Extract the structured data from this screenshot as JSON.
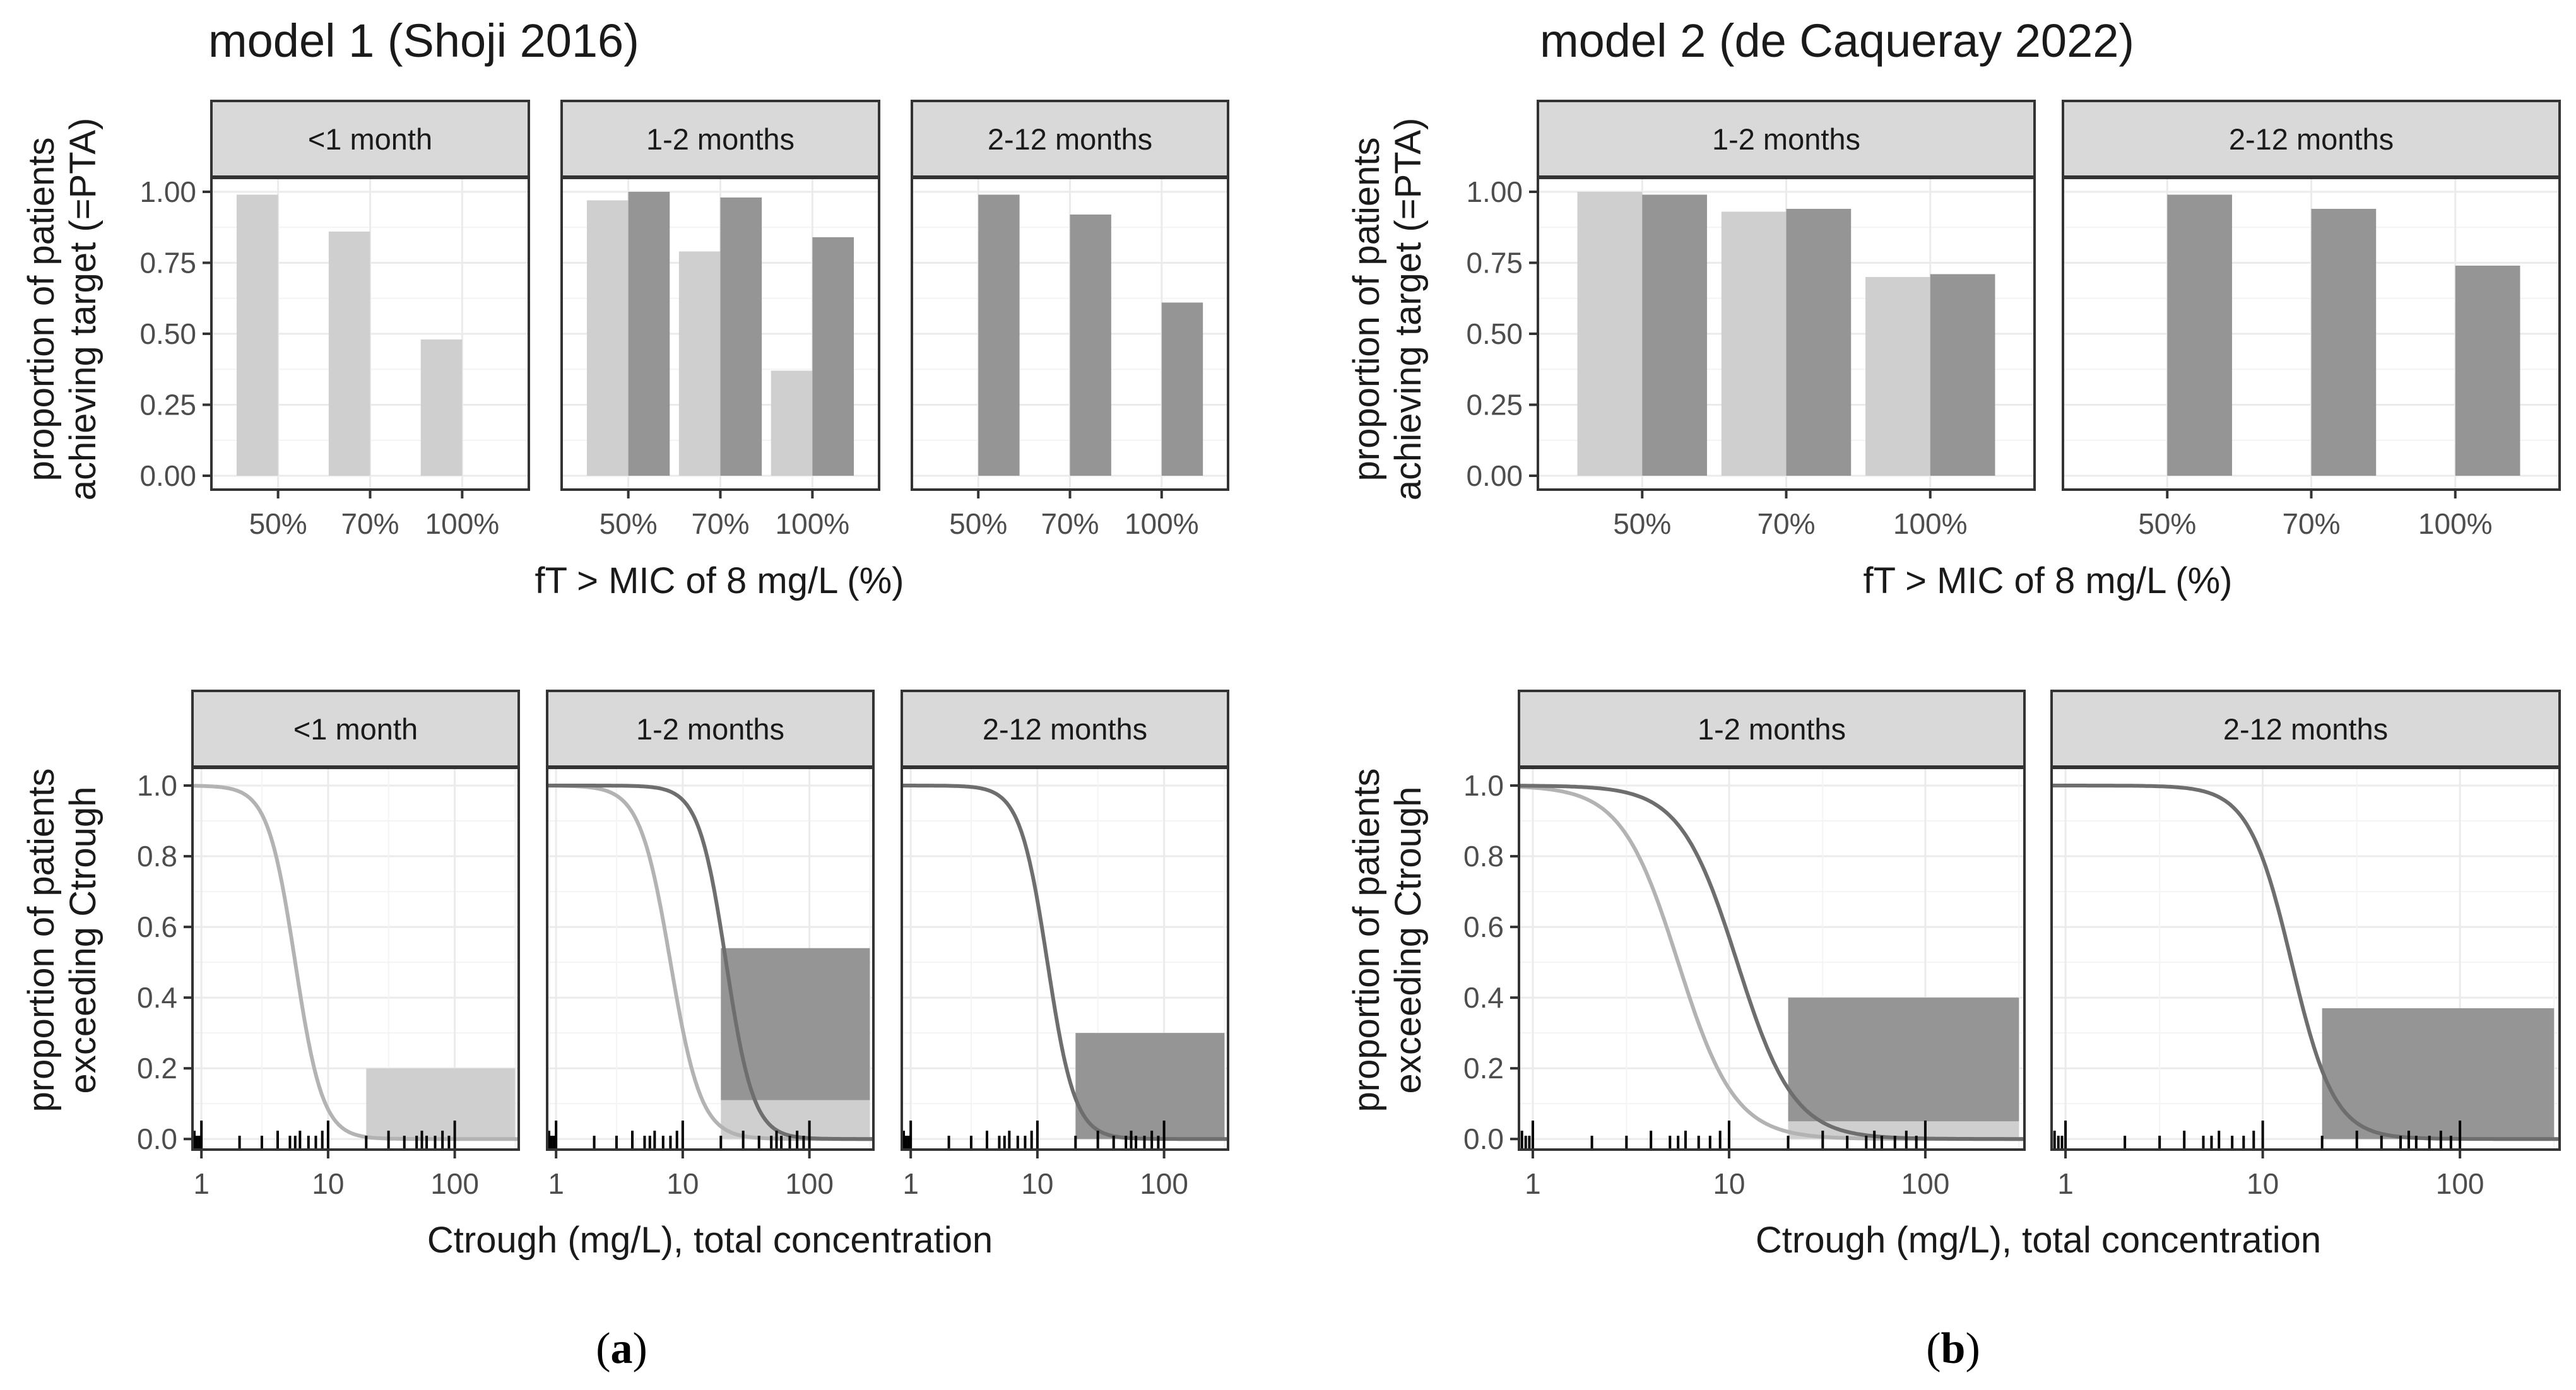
{
  "colors": {
    "light": "#cfcfcf",
    "dark": "#959595",
    "line_light": "#b3b3b3",
    "line_dark": "#6e6e6e",
    "strip_bg": "#d9d9d9",
    "grid": "#ebebeb",
    "rug": "#000000"
  },
  "sub_labels": [
    {
      "id": "a",
      "text": "a"
    },
    {
      "id": "b",
      "text": "b"
    }
  ],
  "chart_data": [
    {
      "id": "a-pta",
      "type": "bar",
      "title": "model 1 (Shoji 2016)",
      "ylabel_lines": [
        "proportion of patients",
        "achieving target (=PTA)"
      ],
      "xlabel": "fT > MIC of 8 mg/L (%)",
      "ylim": [
        0,
        1
      ],
      "yticks": [
        0,
        0.25,
        0.5,
        0.75,
        1
      ],
      "ytick_labels": [
        "0.00",
        "0.25",
        "0.50",
        "0.75",
        "1.00"
      ],
      "categories": [
        "50%",
        "70%",
        "100%"
      ],
      "facets": [
        {
          "label": "<1 month",
          "series": [
            {
              "name": "light",
              "values": [
                0.99,
                0.86,
                0.48
              ]
            }
          ]
        },
        {
          "label": "1-2 months",
          "series": [
            {
              "name": "light",
              "values": [
                0.97,
                0.79,
                0.37
              ]
            },
            {
              "name": "dark",
              "values": [
                1.0,
                0.98,
                0.84
              ]
            }
          ]
        },
        {
          "label": "2-12 months",
          "series": [
            {
              "name": "dark",
              "values": [
                0.99,
                0.92,
                0.61
              ]
            }
          ]
        }
      ]
    },
    {
      "id": "b-pta",
      "type": "bar",
      "title": "model 2 (de Caqueray 2022)",
      "ylabel_lines": [
        "proportion of patients",
        "achieving target (=PTA)"
      ],
      "xlabel": "fT > MIC of 8 mg/L (%)",
      "ylim": [
        0,
        1
      ],
      "yticks": [
        0,
        0.25,
        0.5,
        0.75,
        1
      ],
      "ytick_labels": [
        "0.00",
        "0.25",
        "0.50",
        "0.75",
        "1.00"
      ],
      "categories": [
        "50%",
        "70%",
        "100%"
      ],
      "facets": [
        {
          "label": "1-2 months",
          "series": [
            {
              "name": "light",
              "values": [
                1.0,
                0.93,
                0.7
              ]
            },
            {
              "name": "dark",
              "values": [
                0.99,
                0.94,
                0.71
              ]
            }
          ]
        },
        {
          "label": "2-12 months",
          "series": [
            {
              "name": "dark",
              "values": [
                0.99,
                0.94,
                0.74
              ]
            }
          ]
        }
      ]
    },
    {
      "id": "a-ctrough",
      "type": "line",
      "xscale": "log",
      "xlim": [
        0.85,
        320
      ],
      "ylim": [
        -0.03,
        1.05
      ],
      "xticks": [
        1,
        10,
        100
      ],
      "xtick_labels": [
        "1",
        "10",
        "100"
      ],
      "yticks": [
        0,
        0.2,
        0.4,
        0.6,
        0.8,
        1
      ],
      "ytick_labels": [
        "0.0",
        "0.2",
        "0.4",
        "0.6",
        "0.8",
        "1.0"
      ],
      "ylabel_lines": [
        "proportion of patients",
        "exceeding Ctrough"
      ],
      "xlabel": "Ctrough (mg/L), total concentration",
      "rug_x": [
        0.88,
        0.92,
        0.96,
        1.0,
        2,
        3,
        4,
        5,
        5.5,
        6,
        7,
        8,
        9,
        10,
        20,
        30,
        40,
        50,
        55,
        60,
        70,
        80,
        90,
        100
      ],
      "facets": [
        {
          "label": "<1 month",
          "series": [
            {
              "name": "light",
              "median": 5.5,
              "slope": 4.0
            }
          ],
          "rects": [
            {
              "name": "light",
              "x0": 20,
              "x1": 300,
              "y0": 0,
              "y1": 0.2
            }
          ]
        },
        {
          "label": "1-2 months",
          "series": [
            {
              "name": "light",
              "median": 8.0,
              "slope": 3.6
            },
            {
              "name": "dark",
              "median": 22,
              "slope": 4.0
            }
          ],
          "rects": [
            {
              "name": "light",
              "x0": 20,
              "x1": 300,
              "y0": 0,
              "y1": 0.11
            },
            {
              "name": "dark",
              "x0": 20,
              "x1": 300,
              "y0": 0.11,
              "y1": 0.54
            }
          ]
        },
        {
          "label": "2-12 months",
          "series": [
            {
              "name": "dark",
              "median": 12,
              "slope": 4.0
            }
          ],
          "rects": [
            {
              "name": "dark",
              "x0": 20,
              "x1": 300,
              "y0": 0,
              "y1": 0.3
            }
          ]
        }
      ]
    },
    {
      "id": "b-ctrough",
      "type": "line",
      "xscale": "log",
      "xlim": [
        0.85,
        320
      ],
      "ylim": [
        -0.03,
        1.05
      ],
      "xticks": [
        1,
        10,
        100
      ],
      "xtick_labels": [
        "1",
        "10",
        "100"
      ],
      "yticks": [
        0,
        0.2,
        0.4,
        0.6,
        0.8,
        1
      ],
      "ytick_labels": [
        "0.0",
        "0.2",
        "0.4",
        "0.6",
        "0.8",
        "1.0"
      ],
      "ylabel_lines": [
        "proportion of patients",
        "exceeding Ctrough"
      ],
      "xlabel": "Ctrough (mg/L), total concentration",
      "rug_x": [
        0.88,
        0.92,
        0.96,
        1.0,
        2,
        3,
        4,
        5,
        5.5,
        6,
        7,
        8,
        9,
        10,
        20,
        30,
        40,
        50,
        55,
        60,
        70,
        80,
        90,
        100
      ],
      "facets": [
        {
          "label": "1-2 months",
          "series": [
            {
              "name": "light",
              "median": 5.5,
              "slope": 3.0
            },
            {
              "name": "dark",
              "median": 11,
              "slope": 3.0
            }
          ],
          "rects": [
            {
              "name": "light",
              "x0": 20,
              "x1": 300,
              "y0": 0,
              "y1": 0.05
            },
            {
              "name": "dark",
              "x0": 20,
              "x1": 300,
              "y0": 0.05,
              "y1": 0.4
            }
          ]
        },
        {
          "label": "2-12 months",
          "series": [
            {
              "name": "dark",
              "median": 14,
              "slope": 4.0
            }
          ],
          "rects": [
            {
              "name": "dark",
              "x0": 20,
              "x1": 300,
              "y0": 0,
              "y1": 0.37
            }
          ]
        }
      ]
    }
  ]
}
